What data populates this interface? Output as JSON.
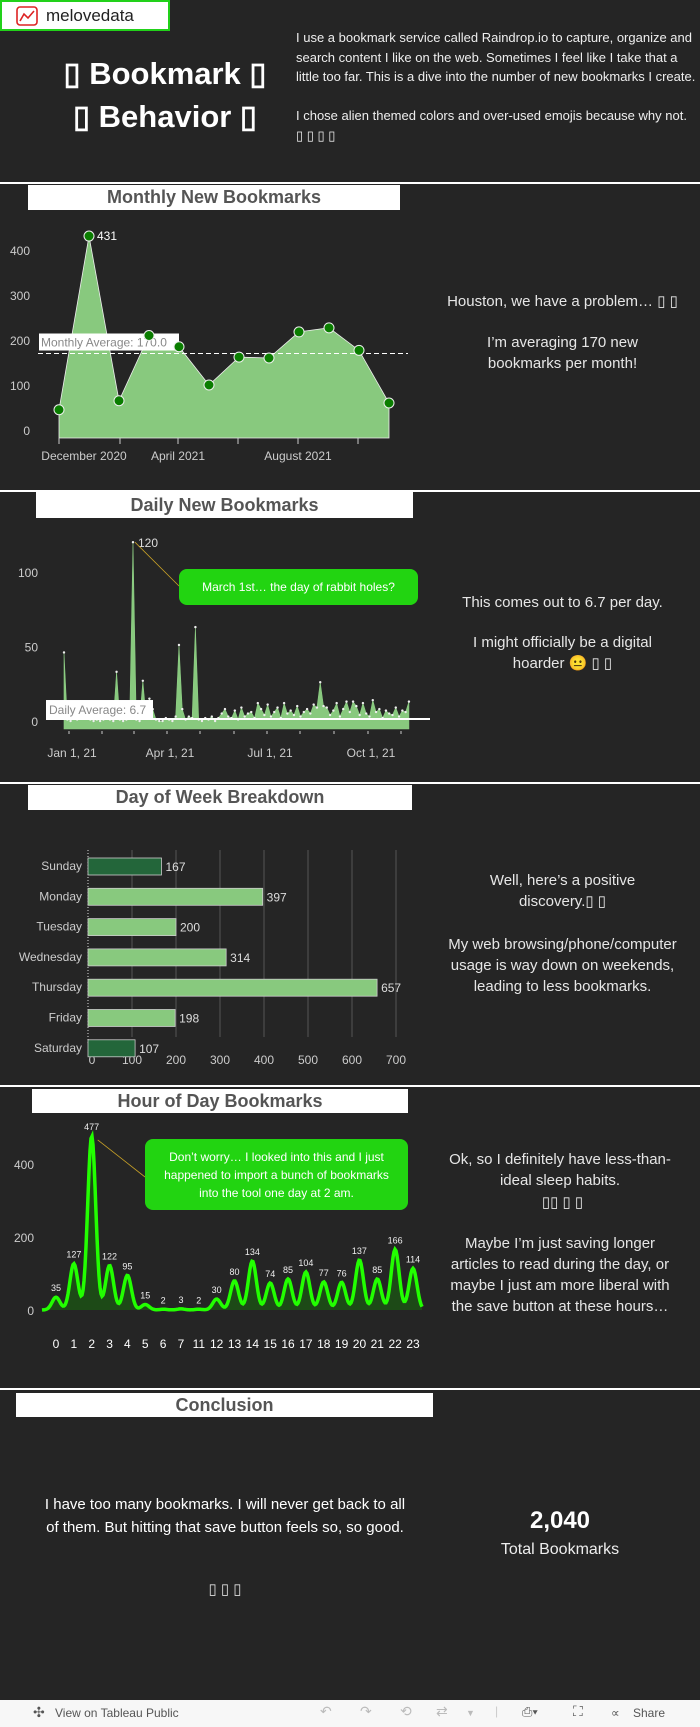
{
  "logo": {
    "text": "melovedata"
  },
  "title": {
    "line1": "▯ Bookmark ▯",
    "line2": "▯ Behavior ▯"
  },
  "intro": {
    "p1": "I use a bookmark service called Raindrop.io to capture, organize and search content I like on the web. Sometimes I feel like I take that a little too far. This is a dive into the number of new bookmarks I create.",
    "p2": "I chose alien themed colors and over-used emojis because why not. ▯ ▯ ▯ ▯"
  },
  "colors": {
    "bg": "#252525",
    "area": "#88c97e",
    "point": "#0a7d00",
    "weekend": "#23663a",
    "hour_line": "#22ff00",
    "annotation": "#22d411"
  },
  "monthly": {
    "header": "Monthly New Bookmarks",
    "side_p1": "Houston, we have a problem… ▯ ▯",
    "side_p2": "I’m averaging 170 new bookmarks per month!",
    "avg_label": "Monthly Average: 170.0",
    "peak_label": "431"
  },
  "daily": {
    "header": "Daily New Bookmarks",
    "side_p1": "This comes out to 6.7 per day.",
    "side_p2": "I might officially be a digital hoarder 😐 ▯ ▯",
    "avg_label": "Daily Average: 6.7",
    "peak_label": "120",
    "annotation": "March 1st… the day of rabbit holes?"
  },
  "weekday": {
    "header": "Day of Week Breakdown",
    "side_p1": "Well, here’s a positive discovery.▯ ▯",
    "side_p2": "My web browsing/phone/computer usage is way down  on weekends, leading to less bookmarks."
  },
  "hourly": {
    "header": "Hour of Day Bookmarks",
    "side_p1": "Ok, so I definitely have less-than-ideal sleep habits.",
    "side_emoji": "▯▯ ▯ ▯",
    "side_p2": "Maybe I’m just saving longer articles to read during the day, or maybe I just am more liberal with the save button at these hours…",
    "annotation": "Don’t worry… I looked into this and I just happened to import a bunch of bookmarks into the tool one day at 2 am."
  },
  "conclusion": {
    "header": "Conclusion",
    "text": "I have too many bookmarks. I will never get back to all of them. But hitting that save button feels so, so good.",
    "emoji": "▯ ▯ ▯",
    "total": "2,040",
    "total_label": "Total Bookmarks"
  },
  "footer": {
    "view": "View on Tableau Public",
    "share": "Share"
  },
  "chart_data": [
    {
      "type": "area",
      "title": "Monthly New Bookmarks",
      "x": [
        "Nov 2020",
        "Dec 2020",
        "Jan 2021",
        "Feb 2021",
        "Mar 2021",
        "Apr 2021",
        "May 2021",
        "Jun 2021",
        "Jul 2021",
        "Aug 2021",
        "Sep 2021",
        "Oct 2021"
      ],
      "values": [
        45,
        431,
        65,
        210,
        185,
        100,
        162,
        160,
        218,
        227,
        177,
        60
      ],
      "xticklabels": [
        "December 2020",
        "April 2021",
        "August 2021"
      ],
      "yticks": [
        0,
        100,
        200,
        300,
        400
      ],
      "ylim": [
        0,
        460
      ],
      "reference_line": 170.0
    },
    {
      "type": "area",
      "title": "Daily New Bookmarks",
      "x_start": "2020-12-27",
      "x_step_days": 3,
      "values": [
        46,
        1,
        0,
        2,
        1,
        3,
        5,
        4,
        1,
        0,
        1,
        0,
        1,
        2,
        1,
        0,
        33,
        1,
        0,
        1,
        2,
        120,
        1,
        0,
        27,
        2,
        15,
        8,
        1,
        0,
        0,
        2,
        1,
        0,
        3,
        51,
        8,
        1,
        3,
        2,
        63,
        1,
        0,
        2,
        1,
        3,
        0,
        2,
        5,
        8,
        3,
        2,
        7,
        1,
        9,
        3,
        5,
        6,
        2,
        12,
        8,
        4,
        11,
        3,
        6,
        9,
        2,
        12,
        5,
        7,
        4,
        10,
        3,
        6,
        8,
        5,
        11,
        9,
        26,
        10,
        9,
        4,
        7,
        12,
        3,
        8,
        13,
        6,
        13,
        10,
        4,
        12,
        5,
        3,
        14,
        6,
        8,
        2,
        7,
        5,
        4,
        9,
        3,
        7,
        6,
        13
      ],
      "xticklabels": [
        "Jan 1, 21",
        "Apr 1, 21",
        "Jul 1, 21",
        "Oct 1, 21"
      ],
      "yticks": [
        0,
        50,
        100
      ],
      "ylim": [
        -6,
        130
      ],
      "reference_line": 6.7
    },
    {
      "type": "bar",
      "title": "Day of Week Breakdown",
      "categories": [
        "Sunday",
        "Monday",
        "Tuesday",
        "Wednesday",
        "Thursday",
        "Friday",
        "Saturday"
      ],
      "values": [
        167,
        397,
        200,
        314,
        657,
        198,
        107
      ],
      "weekend": [
        true,
        false,
        false,
        false,
        false,
        false,
        true
      ],
      "xticks": [
        0,
        100,
        200,
        300,
        400,
        500,
        600,
        700
      ],
      "xlim": [
        0,
        700
      ]
    },
    {
      "type": "line",
      "title": "Hour of Day Bookmarks",
      "categories": [
        "0",
        "1",
        "2",
        "3",
        "4",
        "5",
        "6",
        "7",
        "11",
        "12",
        "13",
        "14",
        "15",
        "16",
        "17",
        "18",
        "19",
        "20",
        "21",
        "22",
        "23"
      ],
      "values": [
        35,
        127,
        477,
        122,
        95,
        15,
        2,
        3,
        2,
        30,
        80,
        134,
        74,
        85,
        104,
        77,
        76,
        137,
        85,
        166,
        114
      ],
      "yticks": [
        0,
        200,
        400
      ],
      "ylim": [
        0,
        500
      ]
    }
  ]
}
